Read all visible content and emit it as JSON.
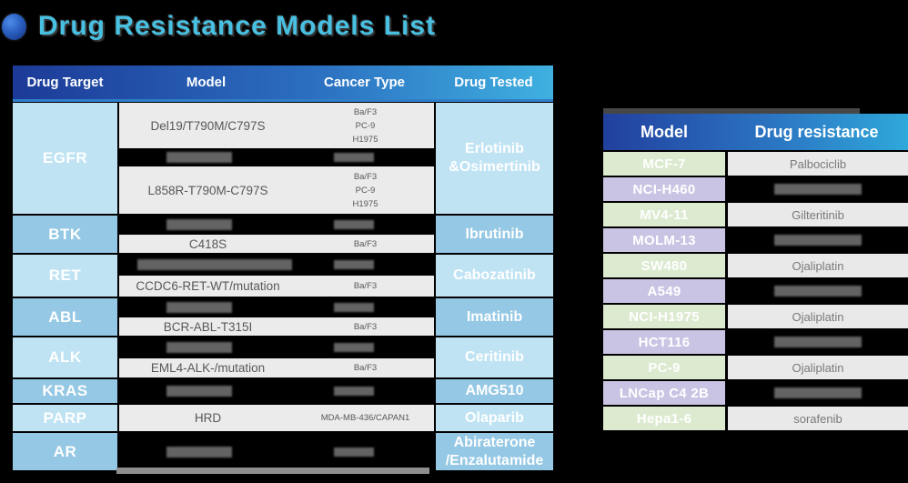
{
  "page": {
    "title": "Drug Resistance Models List",
    "background_color": "#000000",
    "title_color": "#48c0e2",
    "icon": "blue-sphere-bullet-icon"
  },
  "colors": {
    "left_header_gradient": [
      "#1c3a97",
      "#3fb0e0"
    ],
    "right_header_gradient": [
      "#21409e",
      "#2fa8da"
    ],
    "target_cell_light": "#bfe3f3",
    "target_cell_dark": "#95c8e4",
    "data_row_grey": "#ebebeb",
    "model_cell_green": "#dcead0",
    "model_cell_purple": "#c9c4e3",
    "redaction": "#000000"
  },
  "left_table": {
    "headers": [
      "Drug Target",
      "Model",
      "Cancer Type",
      "Drug Tested"
    ],
    "groups": [
      {
        "target": "EGFR",
        "drug_tested": "Erlotinib\n&Osimertinib",
        "rows": [
          {
            "redacted": false,
            "model": "Del19/T790M/C797S",
            "cancer_types": [
              "Ba/F3",
              "PC-9",
              "H1975"
            ]
          },
          {
            "redacted": true
          },
          {
            "redacted": false,
            "model": "L858R-T790M-C797S",
            "cancer_types": [
              "Ba/F3",
              "PC-9",
              "H1975"
            ]
          }
        ]
      },
      {
        "target": "BTK",
        "drug_tested": "Ibrutinib",
        "rows": [
          {
            "redacted": true
          },
          {
            "redacted": false,
            "model": "C418S",
            "cancer_types": [
              "Ba/F3"
            ]
          }
        ]
      },
      {
        "target": "RET",
        "drug_tested": "Cabozatinib",
        "rows": [
          {
            "redacted": true,
            "wide_hint": true
          },
          {
            "redacted": false,
            "model": "CCDC6-RET-WT/mutation",
            "cancer_types": [
              "Ba/F3"
            ]
          }
        ]
      },
      {
        "target": "ABL",
        "drug_tested": "Imatinib",
        "rows": [
          {
            "redacted": true
          },
          {
            "redacted": false,
            "model": "BCR-ABL-T315I",
            "cancer_types": [
              "Ba/F3"
            ]
          }
        ]
      },
      {
        "target": "ALK",
        "drug_tested": "Ceritinib",
        "rows": [
          {
            "redacted": true
          },
          {
            "redacted": false,
            "model": "EML4-ALK-/mutation",
            "cancer_types": [
              "Ba/F3"
            ]
          }
        ]
      },
      {
        "target": "KRAS",
        "drug_tested": "AMG510",
        "rows": [
          {
            "redacted": true
          }
        ]
      },
      {
        "target": "PARP",
        "drug_tested": "Olaparib",
        "rows": [
          {
            "redacted": false,
            "model": "HRD",
            "cancer_types": [
              "MDA-MB-436/CAPAN1"
            ]
          }
        ]
      },
      {
        "target": "AR",
        "drug_tested": "Abiraterone\n/Enzalutamide",
        "rows": [
          {
            "redacted": true
          }
        ]
      }
    ]
  },
  "right_table": {
    "headers": [
      "Model",
      "Drug resistance"
    ],
    "rows": [
      {
        "model": "MCF-7",
        "drug": "Palbociclib",
        "redacted": false
      },
      {
        "model": "NCI-H460",
        "drug": "",
        "redacted": true
      },
      {
        "model": "MV4-11",
        "drug": "Gilteritinib",
        "redacted": false
      },
      {
        "model": "MOLM-13",
        "drug": "",
        "redacted": true
      },
      {
        "model": "SW480",
        "drug": "Ojaliplatin",
        "redacted": false
      },
      {
        "model": "A549",
        "drug": "",
        "redacted": true
      },
      {
        "model": "NCI-H1975",
        "drug": "Ojaliplatin",
        "redacted": false
      },
      {
        "model": "HCT116",
        "drug": "",
        "redacted": true
      },
      {
        "model": "PC-9",
        "drug": "Ojaliplatin",
        "redacted": false
      },
      {
        "model": "LNCap C4 2B",
        "drug": "",
        "redacted": true
      },
      {
        "model": "Hepa1-6",
        "drug": "sorafenib",
        "redacted": false
      }
    ]
  }
}
